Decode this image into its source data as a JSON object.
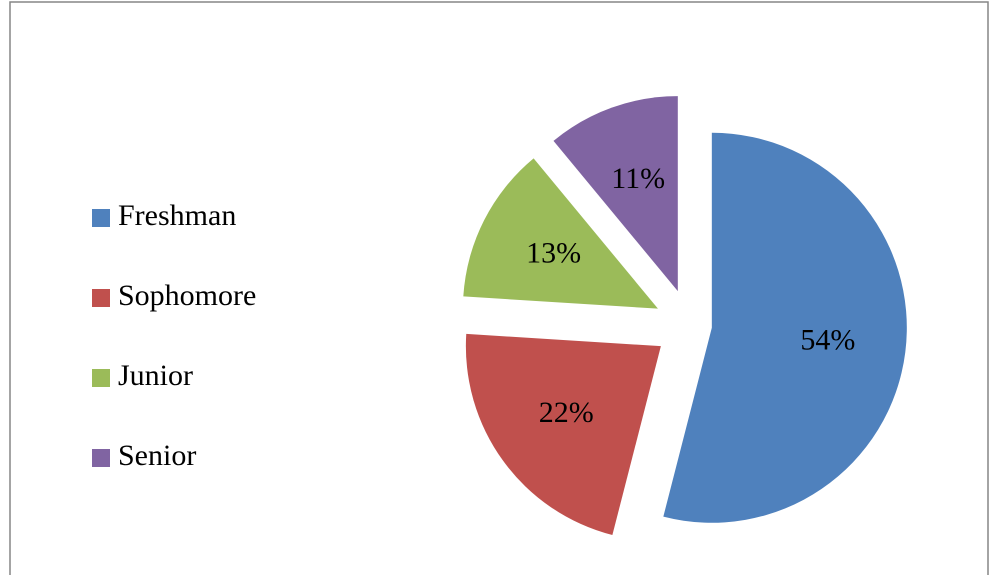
{
  "chart_data": {
    "type": "pie",
    "categories": [
      "Freshman",
      "Sophomore",
      "Junior",
      "Senior"
    ],
    "values": [
      54,
      22,
      13,
      11
    ],
    "value_labels": [
      "54%",
      "22%",
      "13%",
      "11%"
    ],
    "colors": [
      "#4f81bd",
      "#c0504d",
      "#9bbb59",
      "#8064a2"
    ],
    "legend": "left"
  }
}
